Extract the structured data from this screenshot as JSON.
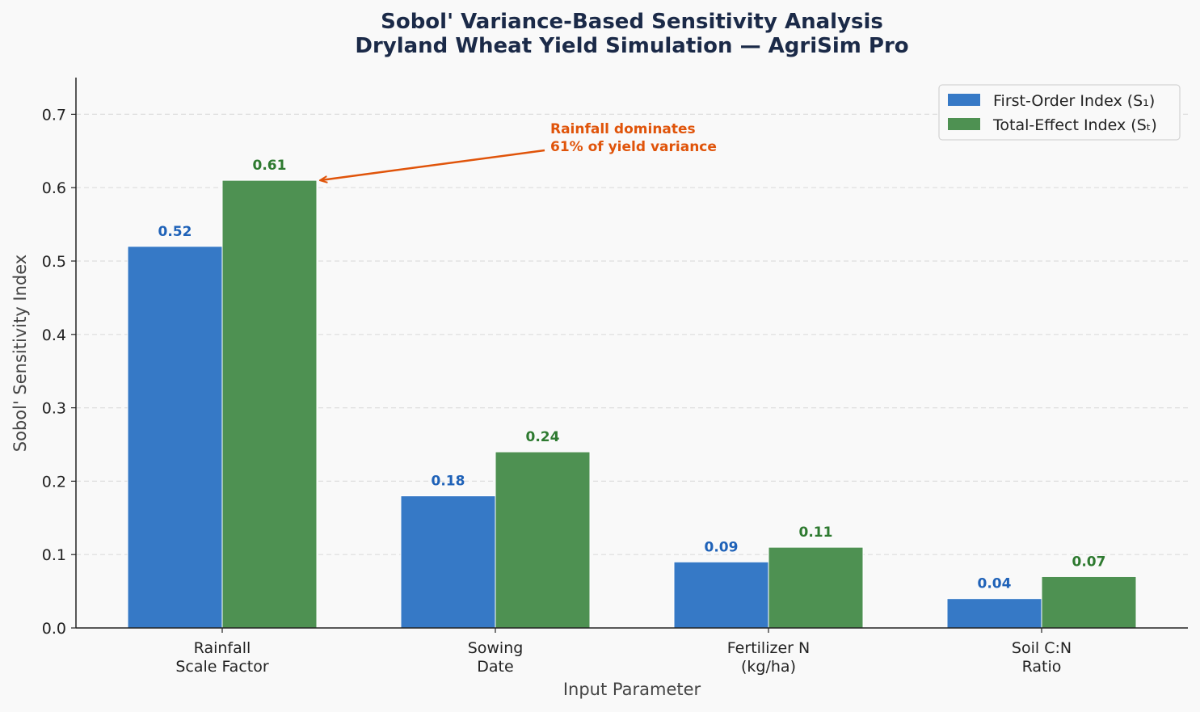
{
  "chart_data": {
    "type": "bar",
    "title_line1": "Sobol' Variance-Based Sensitivity Analysis",
    "title_line2": "Dryland Wheat Yield Simulation — AgriSim Pro",
    "xlabel": "Input Parameter",
    "ylabel": "Sobol' Sensitivity Index",
    "ylim": [
      0,
      0.75
    ],
    "yticks": [
      "0.0",
      "0.1",
      "0.2",
      "0.3",
      "0.4",
      "0.5",
      "0.6",
      "0.7"
    ],
    "grid": "horizontal-dashed",
    "legend_position": "top-right",
    "categories": [
      [
        "Rainfall",
        "Scale Factor"
      ],
      [
        "Sowing",
        "Date"
      ],
      [
        "Fertilizer N",
        "(kg/ha)"
      ],
      [
        "Soil C:N",
        "Ratio"
      ]
    ],
    "series": [
      {
        "name": "First-Order Index (S₁)",
        "color": "#3679c6",
        "label_color": "#1f62b8",
        "values": [
          0.52,
          0.18,
          0.09,
          0.04
        ],
        "labels": [
          "0.52",
          "0.18",
          "0.09",
          "0.04"
        ]
      },
      {
        "name": "Total-Effect Index (Sₜ)",
        "color": "#4e9152",
        "label_color": "#2e7a30",
        "values": [
          0.61,
          0.24,
          0.11,
          0.07
        ],
        "labels": [
          "0.61",
          "0.24",
          "0.11",
          "0.07"
        ]
      }
    ],
    "annotation": {
      "line1": "Rainfall dominates",
      "line2": "61% of yield variance",
      "color": "#e0540a",
      "target_category": 0,
      "target_series": 1
    }
  }
}
